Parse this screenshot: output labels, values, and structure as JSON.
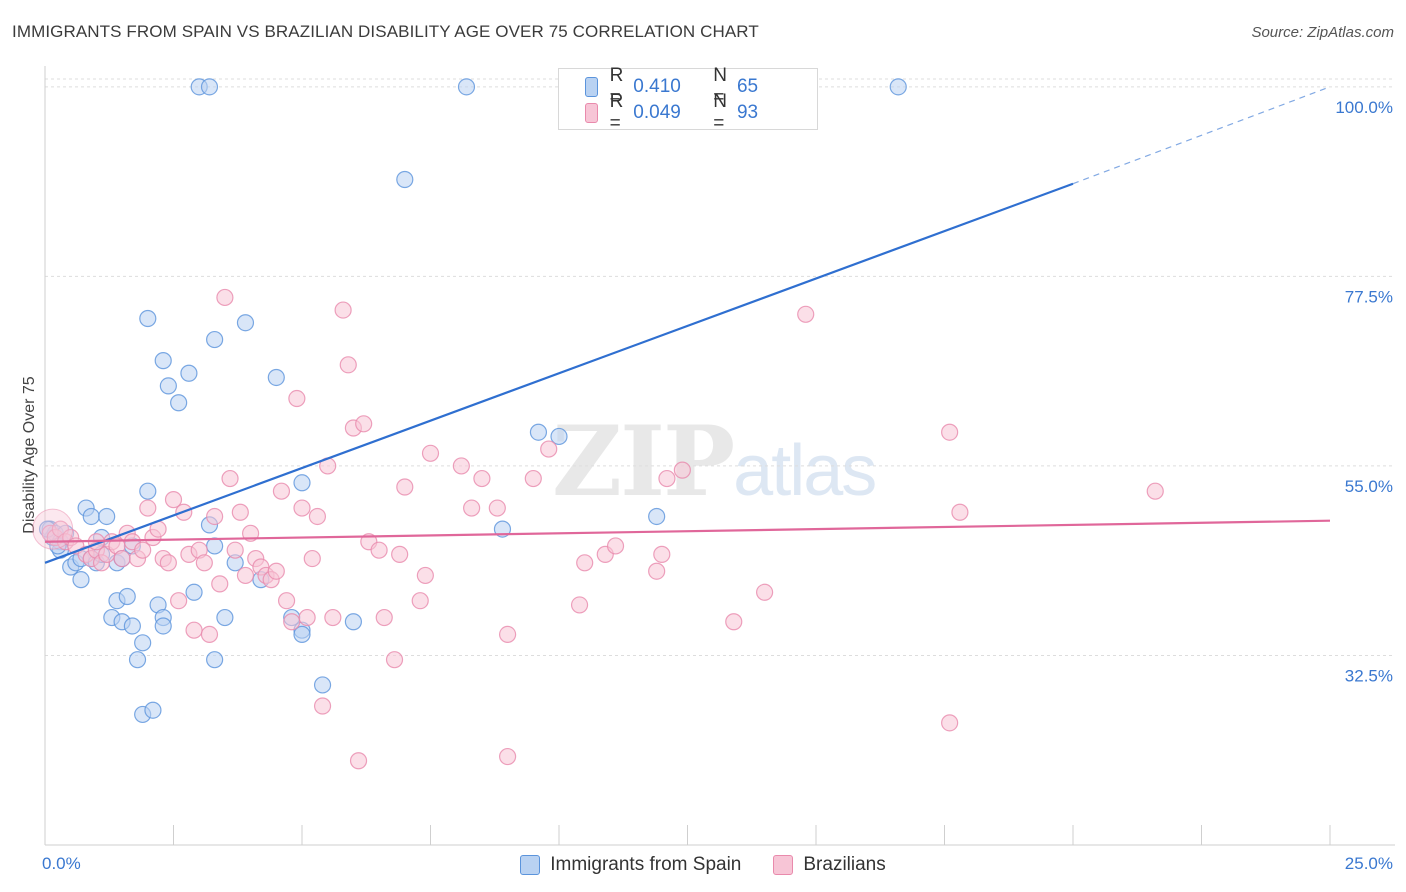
{
  "title": "IMMIGRANTS FROM SPAIN VS BRAZILIAN DISABILITY AGE OVER 75 CORRELATION CHART",
  "source": "Source: ZipAtlas.com",
  "watermark": {
    "zip": "ZIP",
    "atlas": "atlas"
  },
  "colors": {
    "blue_fill": "#b9d2f2",
    "blue_stroke": "#5b94dc",
    "blue_line": "#2f6fd0",
    "pink_fill": "#f7c5d6",
    "pink_stroke": "#e98aac",
    "pink_line": "#e0679a",
    "axis_label": "#3a78d0",
    "grid": "#dddddd"
  },
  "legend": {
    "rows": [
      {
        "r_label": "R =",
        "r_value": "0.410",
        "n_label": "N =",
        "n_value": "65"
      },
      {
        "r_label": "R =",
        "r_value": "0.049",
        "n_label": "N =",
        "n_value": "93"
      }
    ]
  },
  "bottom_legend": {
    "series1": "Immigrants from Spain",
    "series2": "Brazilians"
  },
  "chart_data": {
    "type": "scatter",
    "title": "IMMIGRANTS FROM SPAIN VS BRAZILIAN DISABILITY AGE OVER 75 CORRELATION CHART",
    "xlabel": "",
    "ylabel": "Disability Age Over 75",
    "xlim": [
      0,
      25
    ],
    "ylim": [
      10,
      102
    ],
    "x_tick_labels": [
      {
        "value": 0,
        "label": "0.0%"
      },
      {
        "value": 25,
        "label": "25.0%"
      }
    ],
    "y_ticks": [
      {
        "value": 32.5,
        "label": "32.5%"
      },
      {
        "value": 55.0,
        "label": "55.0%"
      },
      {
        "value": 77.5,
        "label": "77.5%"
      },
      {
        "value": 100.0,
        "label": "100.0%"
      }
    ],
    "series": [
      {
        "name": "Immigrants from Spain",
        "R": 0.41,
        "N": 65,
        "trend": {
          "x0": 0,
          "y0": 43.5,
          "x1": 20,
          "y1": 88.5,
          "dash_to_x": 25,
          "dash_to_y": 100.0
        },
        "points": [
          [
            0.1,
            47.5
          ],
          [
            0.15,
            46.5
          ],
          [
            0.2,
            47.0
          ],
          [
            0.3,
            46.0
          ],
          [
            0.3,
            45.0
          ],
          [
            0.4,
            47.0
          ],
          [
            0.5,
            43.0
          ],
          [
            0.6,
            43.5
          ],
          [
            0.7,
            44.0
          ],
          [
            0.7,
            41.5
          ],
          [
            0.8,
            50.0
          ],
          [
            0.9,
            44.0
          ],
          [
            0.9,
            49.0
          ],
          [
            1.0,
            43.5
          ],
          [
            1.1,
            46.5
          ],
          [
            1.1,
            44.5
          ],
          [
            1.2,
            49.0
          ],
          [
            1.3,
            37.0
          ],
          [
            1.4,
            43.5
          ],
          [
            1.4,
            39.0
          ],
          [
            1.5,
            36.5
          ],
          [
            1.6,
            39.5
          ],
          [
            1.7,
            45.5
          ],
          [
            1.7,
            36.0
          ],
          [
            1.8,
            32.0
          ],
          [
            1.9,
            34.0
          ],
          [
            1.9,
            25.5
          ],
          [
            2.0,
            52.0
          ],
          [
            2.0,
            72.5
          ],
          [
            2.1,
            26.0
          ],
          [
            2.2,
            38.5
          ],
          [
            2.3,
            67.5
          ],
          [
            2.3,
            37.0
          ],
          [
            2.3,
            36.0
          ],
          [
            2.4,
            64.5
          ],
          [
            2.6,
            62.5
          ],
          [
            2.8,
            66.0
          ],
          [
            2.9,
            40.0
          ],
          [
            3.2,
            48.0
          ],
          [
            3.3,
            45.5
          ],
          [
            3.3,
            32.0
          ],
          [
            3.3,
            70.0
          ],
          [
            3.5,
            37.0
          ],
          [
            3.7,
            43.5
          ],
          [
            3.9,
            72.0
          ],
          [
            4.2,
            41.5
          ],
          [
            4.5,
            65.5
          ],
          [
            4.8,
            37.0
          ],
          [
            5.0,
            35.5
          ],
          [
            5.0,
            35.0
          ],
          [
            5.0,
            53.0
          ],
          [
            5.4,
            29.0
          ],
          [
            6.0,
            36.5
          ],
          [
            7.0,
            89.0
          ],
          [
            8.9,
            47.5
          ],
          [
            9.6,
            59.0
          ],
          [
            10.0,
            58.5
          ],
          [
            11.9,
            49.0
          ],
          [
            3.0,
            100.0
          ],
          [
            3.2,
            100.0
          ],
          [
            8.2,
            100.0
          ],
          [
            16.6,
            100.0
          ],
          [
            0.05,
            47.5
          ],
          [
            0.25,
            45.5
          ],
          [
            1.5,
            44.0
          ]
        ]
      },
      {
        "name": "Brazilians",
        "R": 0.049,
        "N": 93,
        "trend": {
          "x0": 0,
          "y0": 46.0,
          "x1": 25,
          "y1": 48.5
        },
        "points": [
          [
            0.1,
            47.0
          ],
          [
            0.2,
            46.5
          ],
          [
            0.3,
            47.5
          ],
          [
            0.4,
            46.0
          ],
          [
            0.5,
            46.5
          ],
          [
            0.6,
            45.5
          ],
          [
            0.8,
            44.5
          ],
          [
            0.9,
            44.0
          ],
          [
            1.0,
            45.0
          ],
          [
            1.1,
            43.5
          ],
          [
            1.2,
            44.5
          ],
          [
            1.3,
            46.0
          ],
          [
            1.4,
            45.5
          ],
          [
            1.5,
            44.0
          ],
          [
            1.6,
            47.0
          ],
          [
            1.7,
            46.0
          ],
          [
            1.8,
            44.0
          ],
          [
            1.9,
            45.0
          ],
          [
            2.0,
            50.0
          ],
          [
            2.1,
            46.5
          ],
          [
            2.2,
            47.5
          ],
          [
            2.3,
            44.0
          ],
          [
            2.4,
            43.5
          ],
          [
            2.5,
            51.0
          ],
          [
            2.6,
            39.0
          ],
          [
            2.7,
            49.5
          ],
          [
            2.8,
            44.5
          ],
          [
            2.9,
            35.5
          ],
          [
            3.0,
            45.0
          ],
          [
            3.1,
            43.5
          ],
          [
            3.2,
            35.0
          ],
          [
            3.3,
            49.0
          ],
          [
            3.4,
            41.0
          ],
          [
            3.5,
            75.0
          ],
          [
            3.6,
            53.5
          ],
          [
            3.7,
            45.0
          ],
          [
            3.8,
            49.5
          ],
          [
            3.9,
            42.0
          ],
          [
            4.0,
            47.0
          ],
          [
            4.1,
            44.0
          ],
          [
            4.2,
            43.0
          ],
          [
            4.3,
            42.0
          ],
          [
            4.4,
            41.5
          ],
          [
            4.5,
            42.5
          ],
          [
            4.6,
            52.0
          ],
          [
            4.7,
            39.0
          ],
          [
            4.8,
            36.5
          ],
          [
            4.9,
            63.0
          ],
          [
            5.0,
            50.0
          ],
          [
            5.1,
            37.0
          ],
          [
            5.2,
            44.0
          ],
          [
            5.3,
            49.0
          ],
          [
            5.4,
            26.5
          ],
          [
            5.5,
            55.0
          ],
          [
            5.6,
            37.0
          ],
          [
            5.8,
            73.5
          ],
          [
            5.9,
            67.0
          ],
          [
            6.0,
            59.5
          ],
          [
            6.1,
            20.0
          ],
          [
            6.2,
            60.0
          ],
          [
            6.3,
            46.0
          ],
          [
            6.5,
            45.0
          ],
          [
            6.6,
            37.0
          ],
          [
            6.8,
            32.0
          ],
          [
            6.9,
            44.5
          ],
          [
            7.0,
            52.5
          ],
          [
            7.3,
            39.0
          ],
          [
            7.4,
            42.0
          ],
          [
            7.5,
            56.5
          ],
          [
            8.1,
            55.0
          ],
          [
            8.3,
            50.0
          ],
          [
            8.5,
            53.5
          ],
          [
            8.8,
            50.0
          ],
          [
            9.0,
            35.0
          ],
          [
            9.5,
            53.5
          ],
          [
            9.8,
            57.0
          ],
          [
            10.4,
            38.5
          ],
          [
            10.5,
            43.5
          ],
          [
            10.9,
            44.5
          ],
          [
            11.1,
            45.5
          ],
          [
            11.9,
            42.5
          ],
          [
            12.0,
            44.5
          ],
          [
            12.1,
            53.5
          ],
          [
            12.4,
            54.5
          ],
          [
            13.4,
            36.5
          ],
          [
            14.0,
            40.0
          ],
          [
            14.8,
            73.0
          ],
          [
            17.6,
            24.5
          ],
          [
            17.6,
            59.0
          ],
          [
            17.8,
            49.5
          ],
          [
            21.6,
            52.0
          ],
          [
            9.0,
            20.5
          ],
          [
            1.0,
            46.0
          ]
        ]
      }
    ]
  }
}
